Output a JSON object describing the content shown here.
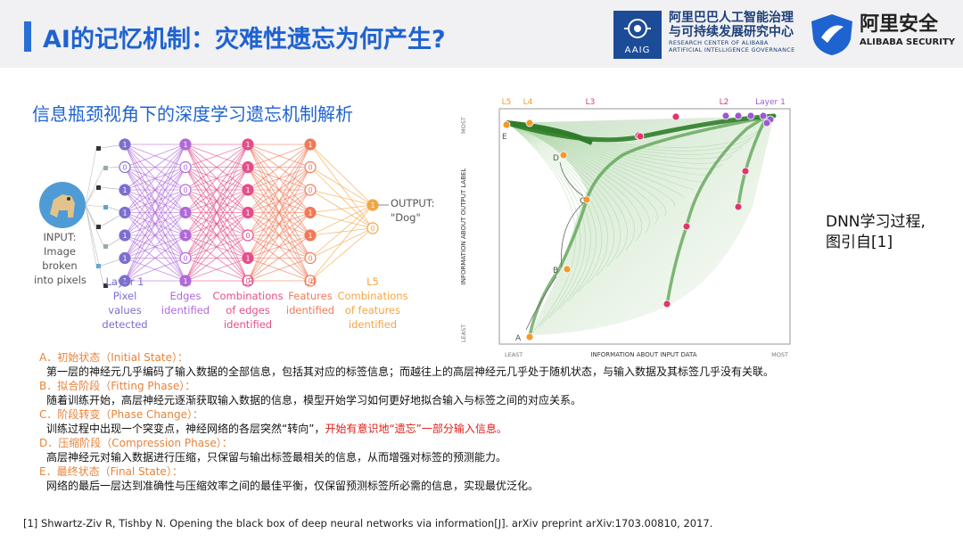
{
  "header": {
    "title": "AI的记忆机制：灾难性遗忘为何产生?",
    "aaig": {
      "badge": "AAIG",
      "line1": "阿里巴巴人工智能治理",
      "line2": "与可持续发展研究中心",
      "line3": "RESEARCH CENTER OF ALIBABA",
      "line4": "ARTIFICIAL INTELLIGENCE GOVERNANCE"
    },
    "alibaba_security": {
      "cn": "阿里安全",
      "en": "ALIBABA SECURITY"
    }
  },
  "subtitle": "信息瓶颈视角下的深度学习遗忘机制解析",
  "network": {
    "input_label": [
      "INPUT:",
      "Image",
      "broken",
      "into pixels"
    ],
    "output_label": [
      "OUTPUT:",
      "\"Dog\""
    ],
    "node_one": "1",
    "node_zero": "0",
    "layers": [
      {
        "title": "Layer 1",
        "desc": [
          "Pixel",
          "values",
          "detected"
        ],
        "color": "#7b6fd0"
      },
      {
        "title": "L2",
        "desc": [
          "Edges",
          "identified"
        ],
        "color": "#b06ad8"
      },
      {
        "title": "L3",
        "desc": [
          "Combinations",
          "of edges",
          "identified"
        ],
        "color": "#e24f8a"
      },
      {
        "title": "L4",
        "desc": [
          "Features",
          "identified"
        ],
        "color": "#f07a58"
      },
      {
        "title": "L5",
        "desc": [
          "Combinations",
          "of features",
          "identified"
        ],
        "color": "#f3a545"
      }
    ]
  },
  "info_plane": {
    "top_labels": [
      "L5",
      "L4",
      "L3",
      "L2",
      "Layer 1"
    ],
    "x_axis": {
      "label": "INFORMATION ABOUT INPUT DATA",
      "min_label": "LEAST",
      "max_label": "MOST"
    },
    "y_axis": {
      "label": "INFORMATION ABOUT OUTPUT LABEL",
      "min_label": "LEAST",
      "max_label": "MOST"
    },
    "points": [
      "A",
      "B",
      "C",
      "D",
      "E"
    ],
    "colors": {
      "orange": "#f39a2a",
      "red": "#e0366b",
      "purple": "#9a5ad0",
      "green": "#2f7d2a"
    }
  },
  "side_note": [
    "DNN学习过程,",
    "图引自[1]"
  ],
  "phases": [
    {
      "head": "A．初始状态（Initial State）：",
      "body": "第一层的神经元几乎编码了输入数据的全部信息，包括其对应的标签信息；而越往上的高层神经元几乎处于随机状态，与输入数据及其标签几乎没有关联。"
    },
    {
      "head": "B．拟合阶段（Fitting Phase）：",
      "body": "随着训练开始，高层神经元逐渐获取输入数据的信息，模型开始学习如何更好地拟合输入与标签之间的对应关系。"
    },
    {
      "head": "C．阶段转变（Phase Change）：",
      "body": "训练过程中出现一个突变点，神经网络的各层突然“转向”，",
      "highlight": "开始有意识地“遗忘”一部分输入信息。"
    },
    {
      "head": "D．压缩阶段（Compression Phase）：",
      "body": "高层神经元对输入数据进行压缩，只保留与输出标签最相关的信息，从而增强对标签的预测能力。"
    },
    {
      "head": "E．最终状态（Final State）：",
      "body": "网络的最后一层达到准确性与压缩效率之间的最佳平衡，仅保留预测标签所必需的信息，实现最优泛化。"
    }
  ],
  "reference": "[1] Shwartz-Ziv R, Tishby N. Opening the black box of deep neural networks via information[J]. arXiv preprint arXiv:1703.00810, 2017."
}
